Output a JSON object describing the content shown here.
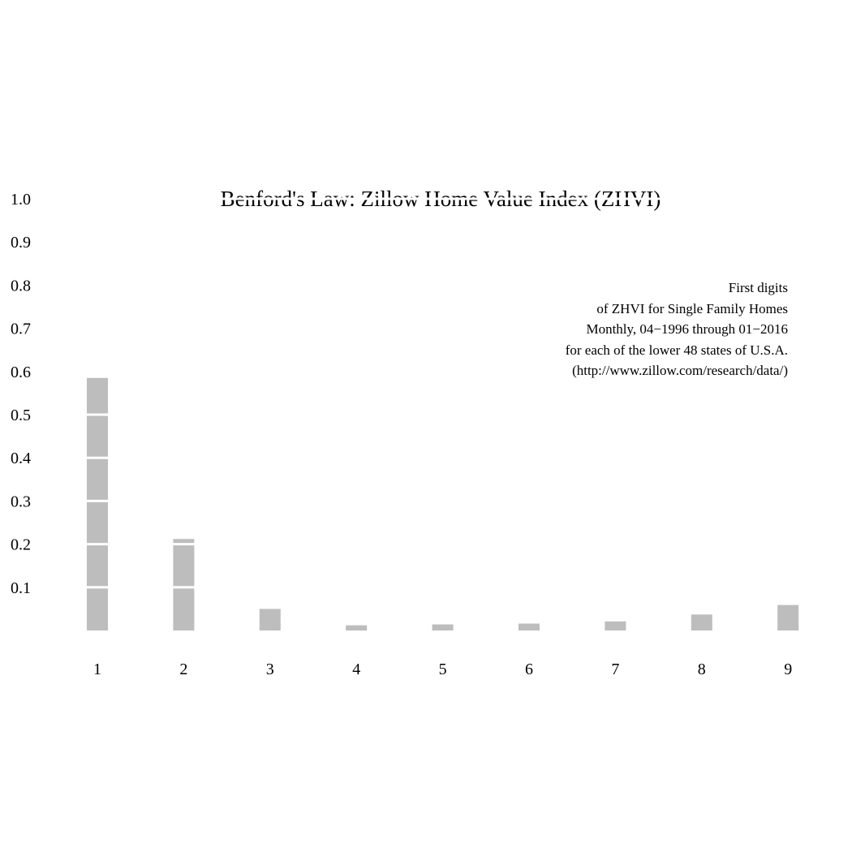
{
  "chart_data": {
    "type": "bar",
    "title": "Benford's Law: Zillow Home Value Index (ZHVI)",
    "xlabel": "",
    "ylabel": "",
    "categories": [
      "1",
      "2",
      "3",
      "4",
      "5",
      "6",
      "7",
      "8",
      "9"
    ],
    "values": [
      0.585,
      0.212,
      0.05,
      0.012,
      0.014,
      0.016,
      0.021,
      0.037,
      0.059
    ],
    "ylim": [
      0,
      1.0
    ],
    "y_ticks": [
      "0.1",
      "0.2",
      "0.3",
      "0.4",
      "0.5",
      "0.6",
      "0.7",
      "0.8",
      "0.9",
      "1.0"
    ],
    "grid": "white horizontal lines through bars at each 0.1 step",
    "bar_color": "#bdbdbd",
    "annotation": [
      "First digits",
      "of ZHVI for Single Family Homes",
      "Monthly, 04−1996 through 01−2016",
      "for each of the lower 48 states of U.S.A.",
      "(http://www.zillow.com/research/data/)"
    ]
  }
}
